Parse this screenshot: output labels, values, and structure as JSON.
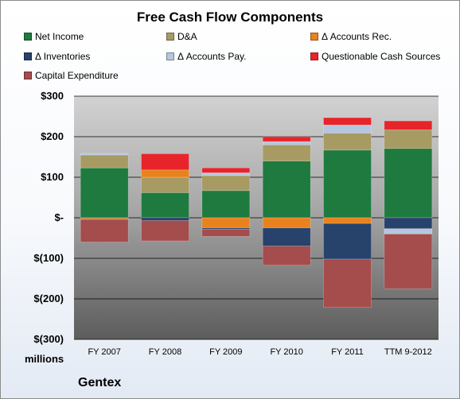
{
  "chart_data": {
    "type": "bar",
    "stacked": true,
    "title": "Free Cash Flow Components",
    "categories": [
      "FY 2007",
      "FY 2008",
      "FY 2009",
      "FY 2010",
      "FY 2011",
      "TTM 9-2012"
    ],
    "ylim": [
      -300,
      300
    ],
    "yticks": [
      {
        "value": 300,
        "label": "$300"
      },
      {
        "value": 200,
        "label": "$200"
      },
      {
        "value": 100,
        "label": "$100"
      },
      {
        "value": 0,
        "label": "$-"
      },
      {
        "value": -100,
        "label": "$(100)"
      },
      {
        "value": -200,
        "label": "$(200)"
      },
      {
        "value": -300,
        "label": "$(300)"
      }
    ],
    "ylabel": "millions",
    "grid": true,
    "legend": "top",
    "series": [
      {
        "name": "Net Income",
        "color": "#1f7a3f",
        "values": [
          123,
          62,
          67,
          140,
          167,
          171
        ]
      },
      {
        "name": "D&A",
        "color": "#a79a63",
        "values": [
          32,
          38,
          37,
          40,
          42,
          46
        ]
      },
      {
        "name": "Δ Accounts Rec.",
        "color": "#e8821e",
        "values": [
          -3,
          18,
          -25,
          -25,
          -14,
          0
        ]
      },
      {
        "name": "Δ Inventories",
        "color": "#27426b",
        "values": [
          -2,
          -7,
          -3,
          -45,
          -88,
          -27
        ]
      },
      {
        "name": "Δ Accounts Pay.",
        "color": "#b5c7e0",
        "values": [
          4,
          0,
          7,
          8,
          20,
          -13
        ]
      },
      {
        "name": "Questionable Cash Sources",
        "color": "#e8242b",
        "values": [
          0,
          40,
          12,
          12,
          18,
          22
        ]
      },
      {
        "name": "Capital Expenditure",
        "color": "#a54c4d",
        "values": [
          -55,
          -50,
          -18,
          -47,
          -119,
          -135
        ]
      }
    ]
  },
  "footer": {
    "unit": "millions",
    "company": "Gentex"
  }
}
